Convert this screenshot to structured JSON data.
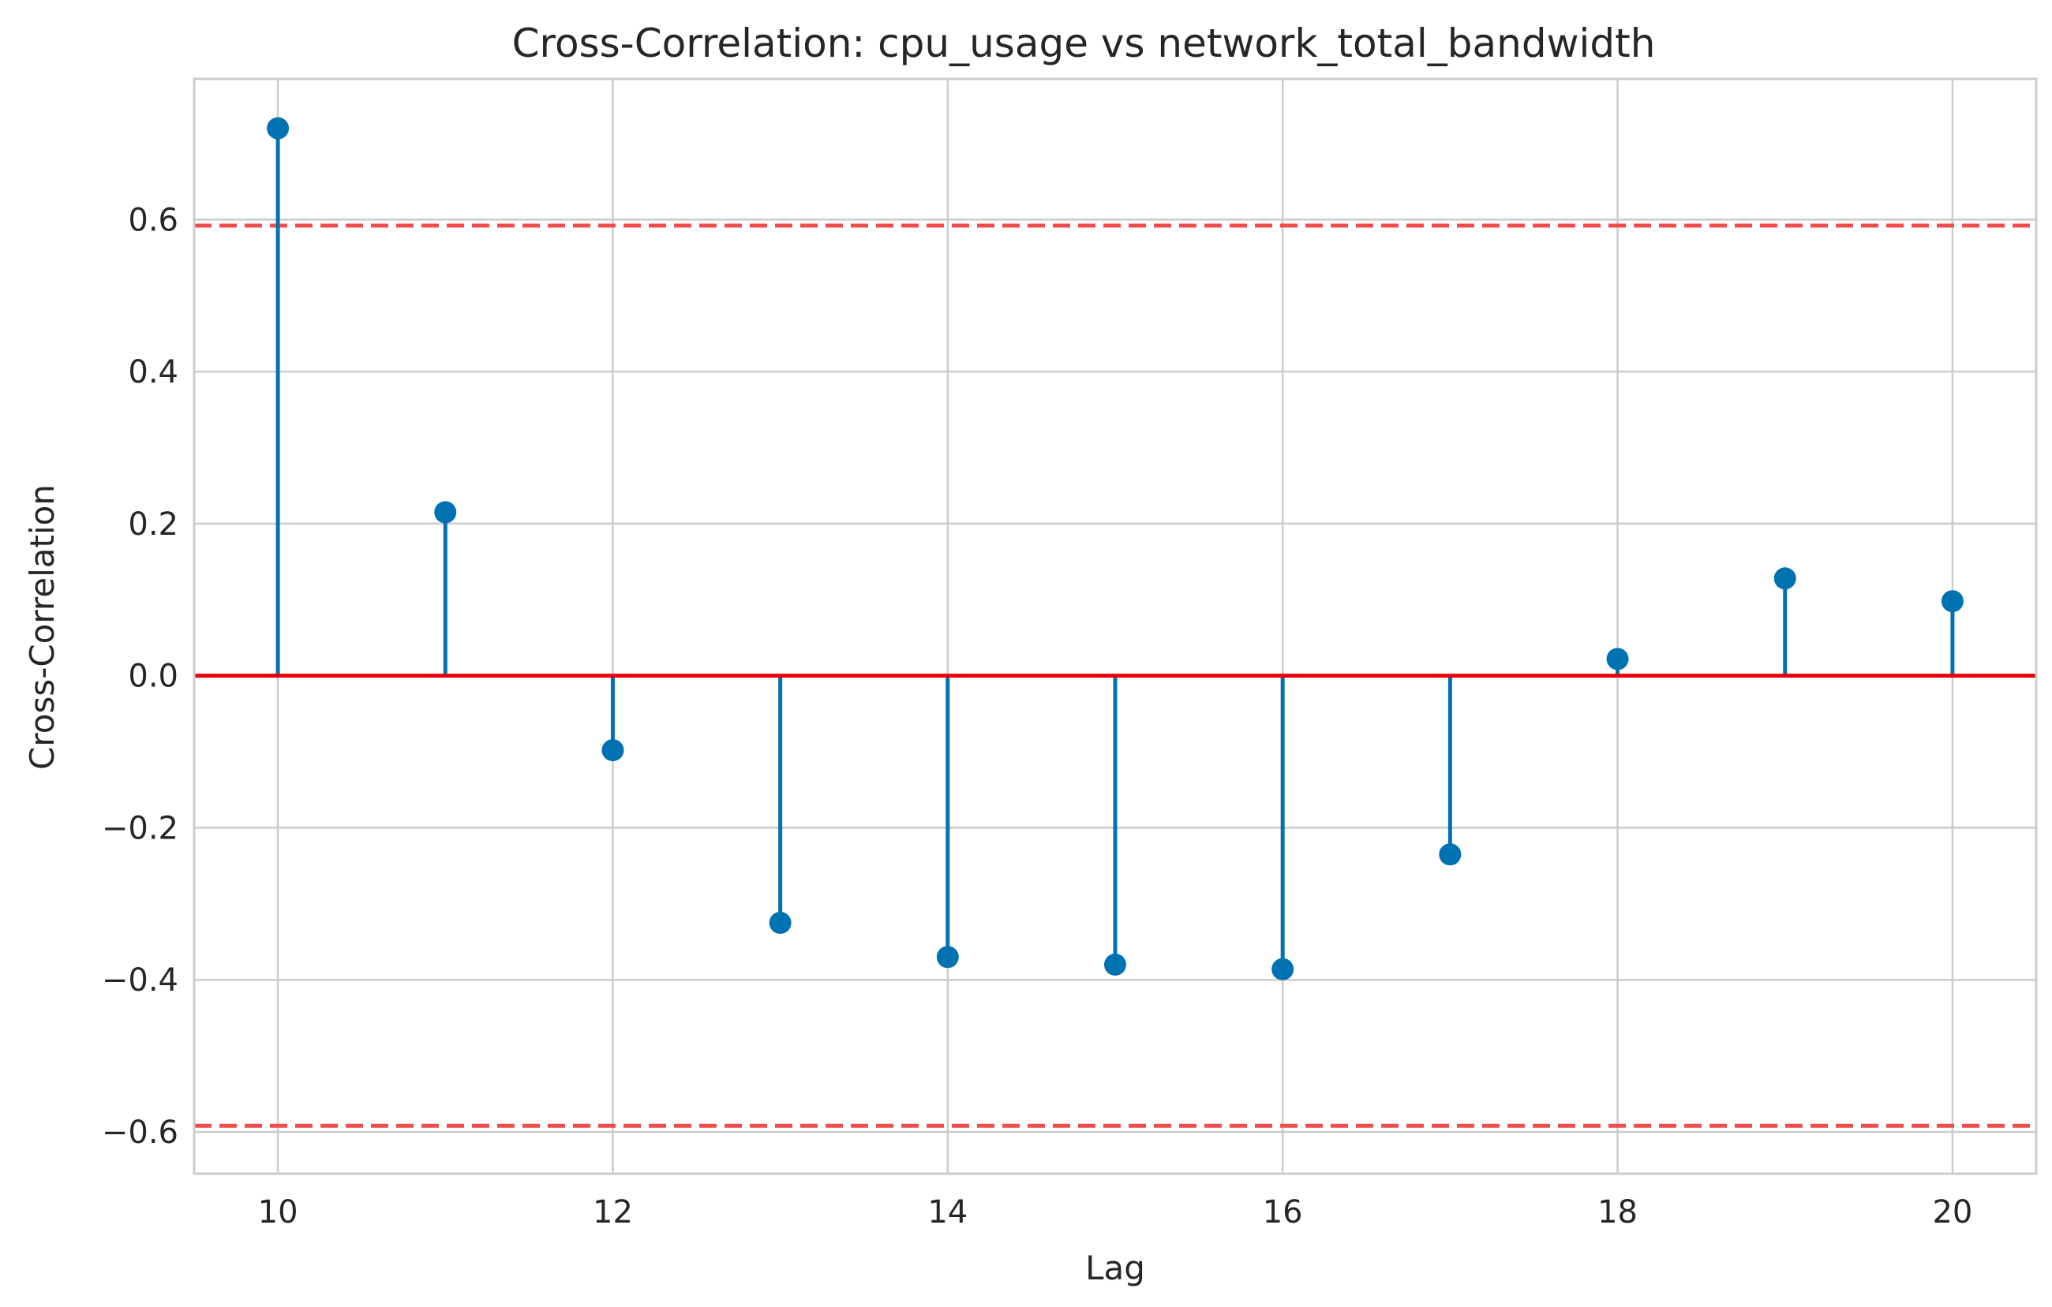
{
  "chart_data": {
    "type": "stem",
    "title": "Cross-Correlation: cpu_usage vs network_total_bandwidth",
    "xlabel": "Lag",
    "ylabel": "Cross-Correlation",
    "xlim": [
      9.5,
      20.5
    ],
    "ylim": [
      -0.655,
      0.785
    ],
    "x_ticks": [
      10,
      12,
      14,
      16,
      18,
      20
    ],
    "y_ticks": [
      -0.6,
      -0.4,
      -0.2,
      0.0,
      0.2,
      0.4,
      0.6
    ],
    "x_tick_labels": [
      "10",
      "12",
      "14",
      "16",
      "18",
      "20"
    ],
    "y_tick_labels": [
      "−0.6",
      "−0.4",
      "−0.2",
      "0.0",
      "0.2",
      "0.4",
      "0.6"
    ],
    "grid": true,
    "x": [
      10,
      11,
      12,
      13,
      14,
      15,
      16,
      17,
      18,
      19,
      20
    ],
    "values": [
      0.72,
      0.215,
      -0.098,
      -0.325,
      -0.37,
      -0.38,
      -0.386,
      -0.235,
      0.022,
      0.128,
      0.098
    ],
    "baseline": 0.0,
    "confidence_bounds": [
      0.592,
      -0.592
    ],
    "colors": {
      "stem": "#0072b2",
      "baseline": "#e8000b",
      "bounds": "#f14d4d",
      "grid": "#cccccc",
      "axes_edge": "#cccccc",
      "text": "#262626"
    }
  }
}
